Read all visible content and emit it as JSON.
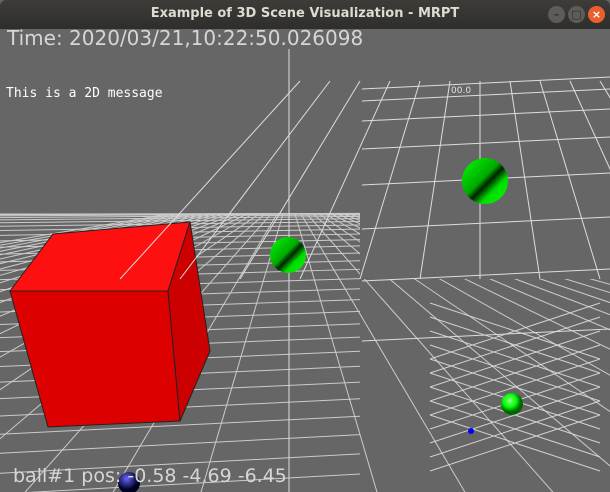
{
  "window": {
    "title": "Example of 3D Scene Visualization - MRPT"
  },
  "controls": {
    "minimize": "–",
    "maximize": "□",
    "close": "×"
  },
  "overlay": {
    "time_text": "Time:  2020/03/21,10:22:50.026098",
    "message_2d": "This is a 2D message",
    "ball_pos_text": "ball#1  pos:  -0.58  -4.69  -6.45"
  },
  "viewport_label": "00.0",
  "colors": {
    "background": "#666666",
    "cube": "#ff0000",
    "sphere": "#00ff00",
    "ball": "#0000ff",
    "grid": "#e8e8e8"
  }
}
